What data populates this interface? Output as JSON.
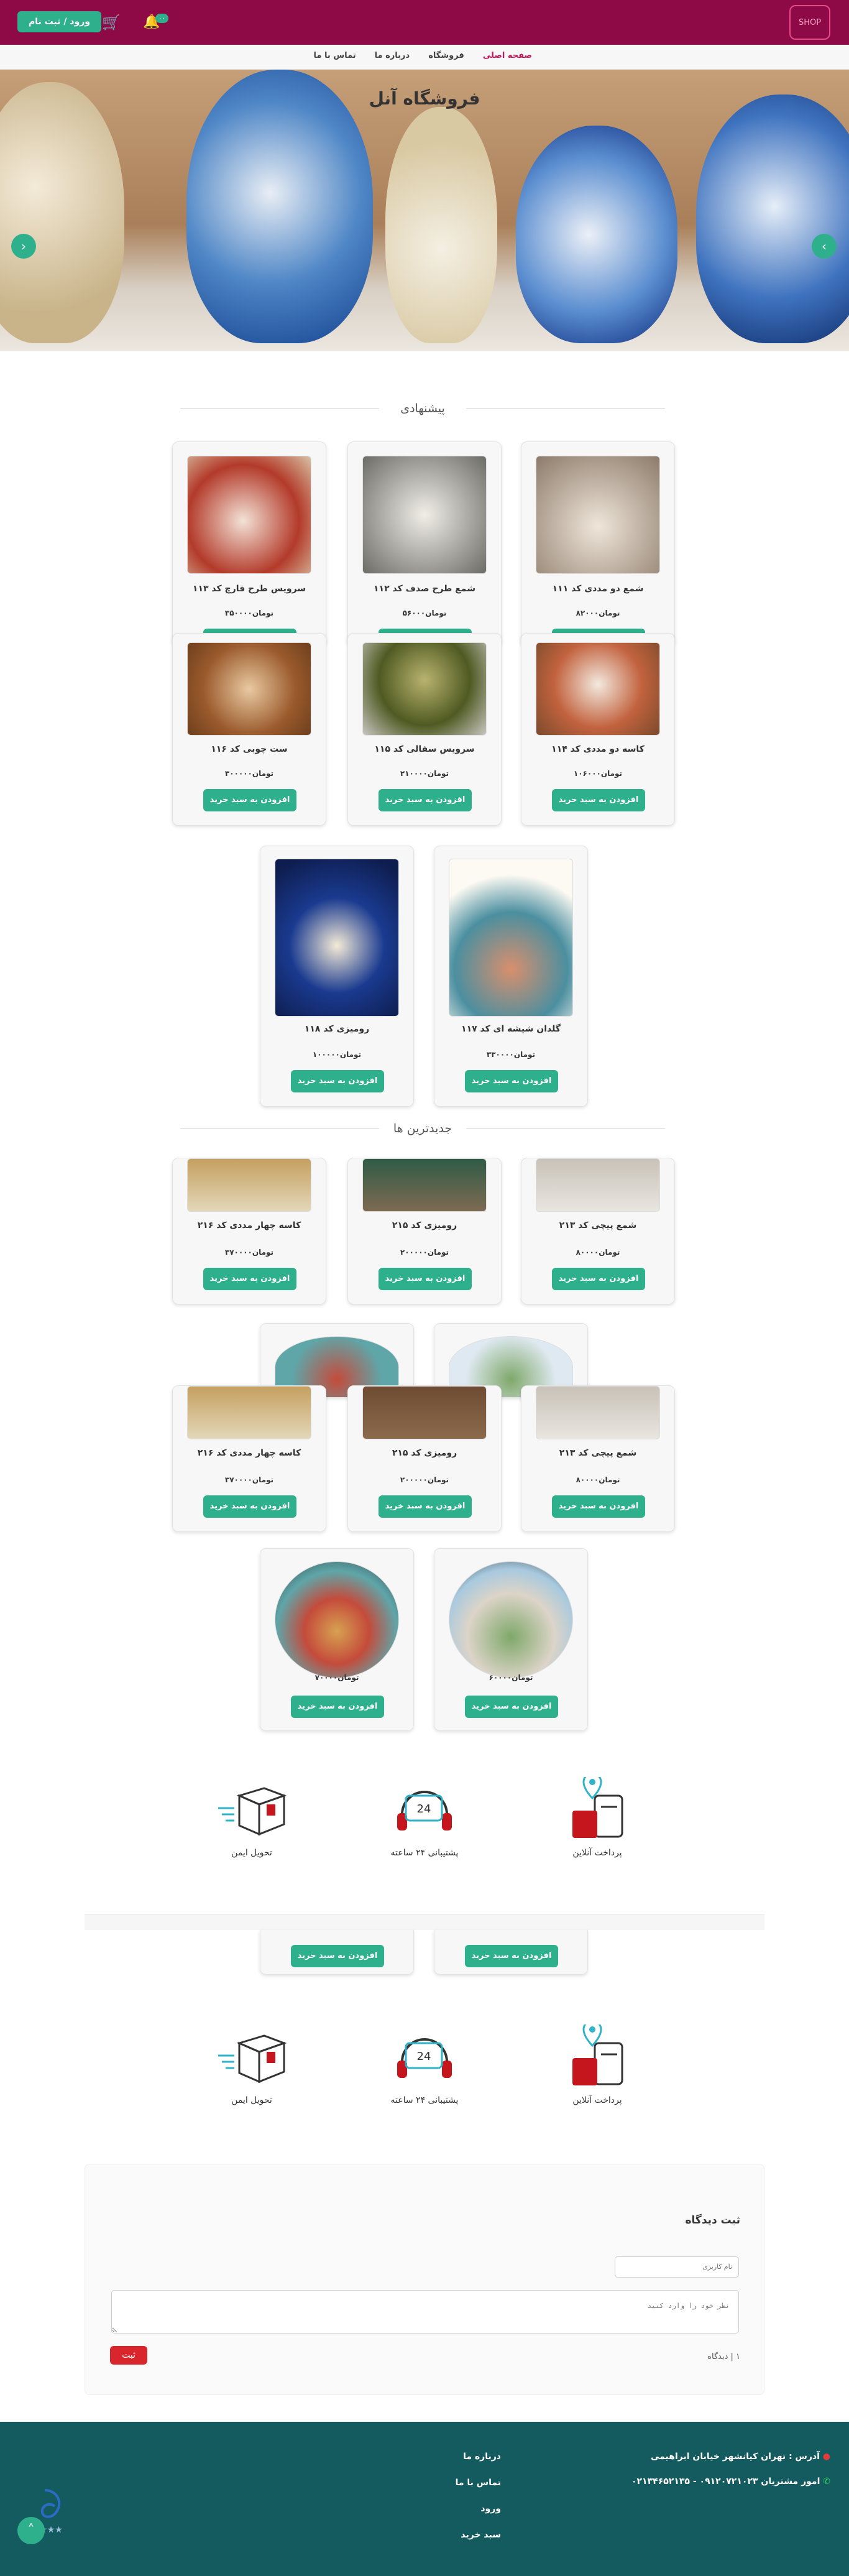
{
  "header": {
    "logo_text": "SHOP",
    "login_label": "ورود / ثبت نام",
    "basket_icon": "basket-icon",
    "notification_icon": "bell-icon",
    "notification_count": "۰۰"
  },
  "nav": {
    "items": [
      {
        "label": "صفحه اصلی",
        "active": true
      },
      {
        "label": "فروشگاه",
        "active": false
      },
      {
        "label": "درباره ما",
        "active": false
      },
      {
        "label": "تماس با ما",
        "active": false
      }
    ]
  },
  "hero": {
    "title": "فروشگاه آنل",
    "prev_icon": "chevron-left-icon",
    "next_icon": "chevron-right-icon"
  },
  "sections": {
    "suggested_title": "پیشنهادی",
    "newest_title": "جدیدترین ها"
  },
  "add_to_cart_label": "افزودن به سبد خرید",
  "suggested": [
    {
      "title": "شمع دو مددی کد ۱۱۱",
      "price": "تومان۸۲۰۰۰"
    },
    {
      "title": "شمع طرح صدف کد ۱۱۲",
      "price": "تومان۵۶۰۰۰"
    },
    {
      "title": "سرویس طرح قارچ کد ۱۱۳",
      "price": "تومان۳۵۰۰۰۰"
    },
    {
      "title": "کاسه دو مددی کد ۱۱۴",
      "price": "تومان۱۰۶۰۰۰"
    },
    {
      "title": "سرویس سفالی کد ۱۱۵",
      "price": "تومان۲۱۰۰۰۰"
    },
    {
      "title": "ست چوبی کد ۱۱۶",
      "price": "تومان۳۰۰۰۰۰"
    },
    {
      "title": "گلدان شیشه ای کد ۱۱۷",
      "price": "تومان۳۳۰۰۰۰"
    },
    {
      "title": "رومیزی کد ۱۱۸",
      "price": "تومان۱۰۰۰۰۰"
    }
  ],
  "newest": [
    {
      "title": "شمع پیچی کد ۲۱۳",
      "price": "تومان۸۰۰۰۰"
    },
    {
      "title": "رومیزی کد ۲۱۵",
      "price": "تومان۲۰۰۰۰۰"
    },
    {
      "title": "کاسه چهار مددی کد ۲۱۶",
      "price": "تومان۳۷۰۰۰۰"
    },
    {
      "title": "شمع پیچی کد ۲۱۳",
      "price": "تومان۸۰۰۰۰"
    },
    {
      "title": "رومیزی کد ۲۱۵",
      "price": "تومان۲۰۰۰۰۰"
    },
    {
      "title": "کاسه چهار مددی کد ۲۱۶",
      "price": "تومان۳۷۰۰۰۰"
    },
    {
      "title": "",
      "price": "تومان۶۰۰۰۰"
    },
    {
      "title": "",
      "price": "تومان۷۰۰۰۰"
    }
  ],
  "features": [
    {
      "label": "پرداخت آنلاین",
      "icon": "online-payment-icon"
    },
    {
      "label": "پشتیبانی ۲۴ ساعته",
      "icon": "support-24-icon"
    },
    {
      "label": "تحویل ایمن",
      "icon": "safe-delivery-icon"
    }
  ],
  "comments": {
    "title": "ثبت دیدگاه",
    "name_placeholder": "نام کاربری",
    "text_placeholder": "نظر خود را وارد کنید",
    "submit_label": "ثبت",
    "count_label": "۱ | دیدگاه"
  },
  "footer": {
    "address": "آدرس : تهران کیانشهر خیابان ابراهیمی",
    "phone": "امور مشتریان ۰۹۱۲۰۷۲۱۰۲۳ - ۰۲۱۳۴۶۵۲۱۳۵",
    "links": [
      "درباره ما",
      "تماس با ما",
      "ورود",
      "سبد خرید"
    ],
    "scroll_top_icon": "chevron-up-icon"
  }
}
